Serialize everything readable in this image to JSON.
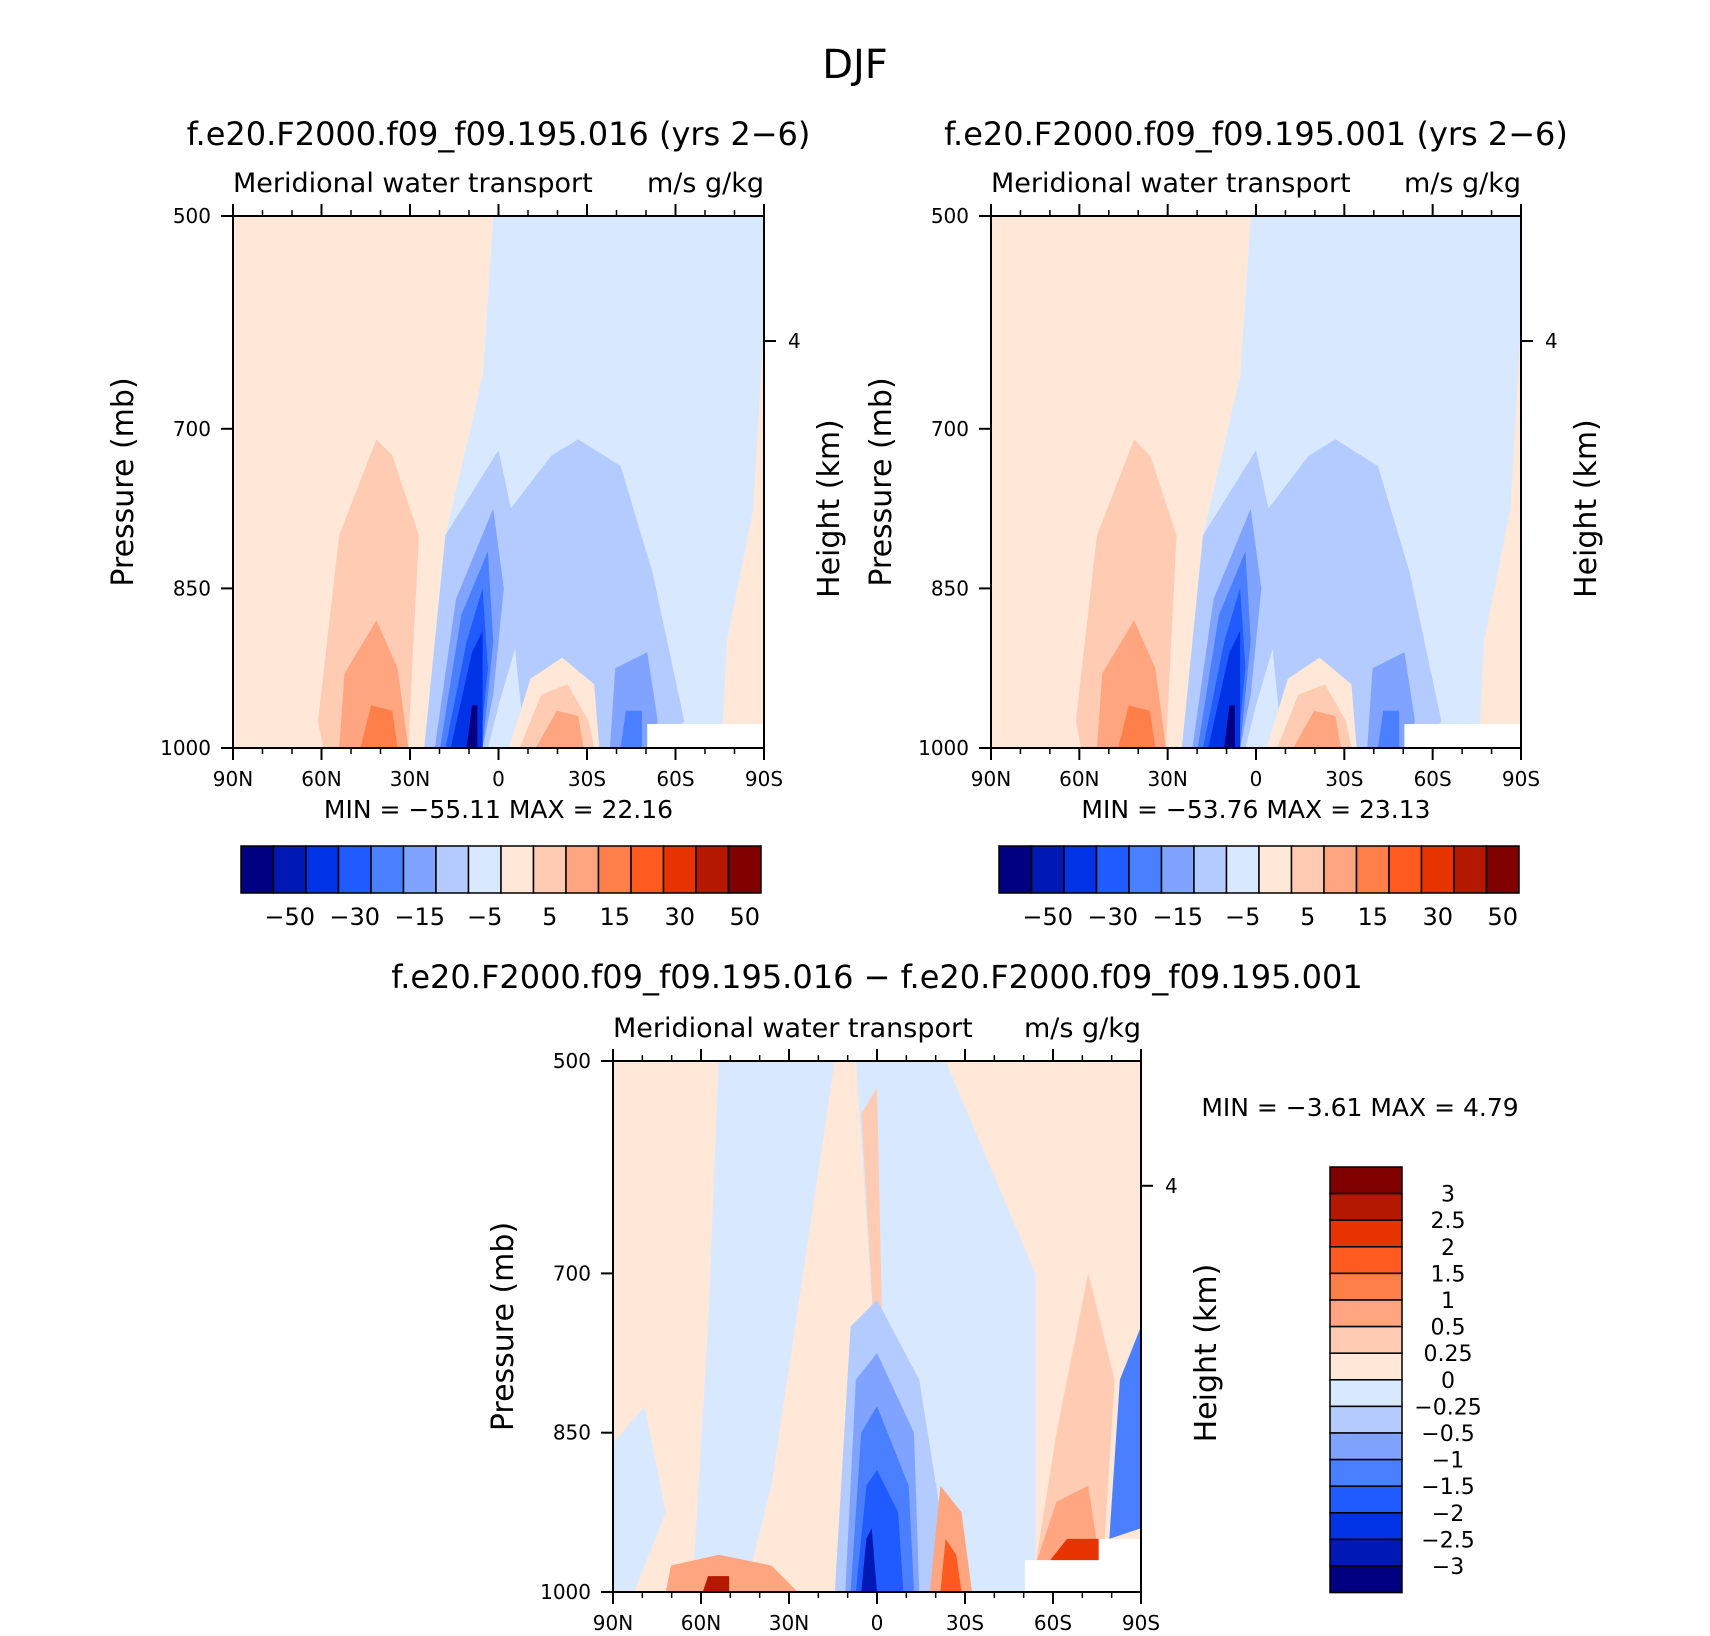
{
  "figure_title": "DJF",
  "colors": {
    "main_scale": [
      "#000080",
      "#0019b4",
      "#0033e6",
      "#1f5bff",
      "#4a7fff",
      "#7fa3ff",
      "#b3cbff",
      "#d8e9ff",
      "#ffe8d8",
      "#ffcbb3",
      "#ffa57f",
      "#ff7f4a",
      "#ff5a1f",
      "#e63300",
      "#b41900",
      "#800000"
    ],
    "diff_scale": [
      "#000080",
      "#0019b4",
      "#0033e6",
      "#1f5bff",
      "#4a7fff",
      "#7fa3ff",
      "#b3cbff",
      "#d8e9ff",
      "#ffe8d8",
      "#ffcbb3",
      "#ffa57f",
      "#ff7f4a",
      "#ff5a1f",
      "#e63300",
      "#b41900",
      "#800000"
    ]
  },
  "panels": [
    {
      "title": "f.e20.F2000.f09_f09.195.016 (yrs 2−6)",
      "left_label": "Meridional water transport",
      "right_label": "m/s g/kg",
      "min_max": "MIN = −55.11   MAX =   22.16"
    },
    {
      "title": "f.e20.F2000.f09_f09.195.001 (yrs 2−6)",
      "left_label": "Meridional water transport",
      "right_label": "m/s g/kg",
      "min_max": "MIN = −53.76   MAX =   23.13"
    },
    {
      "title": "f.e20.F2000.f09_f09.195.016 − f.e20.F2000.f09_f09.195.001",
      "left_label": "Meridional water transport",
      "right_label": "m/s g/kg",
      "min_max": "MIN =   −3.61   MAX =    4.79"
    }
  ],
  "axis": {
    "ylabel": "Pressure (mb)",
    "y2label": "Height (km)",
    "y2_ticks": [
      "4"
    ]
  },
  "colorbar_main_labels": [
    "−50",
    "−30",
    "−15",
    "−5",
    "5",
    "15",
    "30",
    "50"
  ],
  "colorbar_diff_labels": [
    "3",
    "2.5",
    "2",
    "1.5",
    "1",
    "0.5",
    "0.25",
    "0",
    "−0.25",
    "−0.5",
    "−1",
    "−1.5",
    "−2",
    "−2.5",
    "−3"
  ],
  "chart_data": [
    {
      "type": "heatmap",
      "title": "f.e20.F2000.f09_f09.195.016 (yrs 2−6)",
      "subtitle": "Meridional water transport",
      "units": "m/s g/kg",
      "xlabel": "",
      "ylabel": "Pressure (mb)",
      "y2label": "Height (km)",
      "x_ticks": [
        "90N",
        "60N",
        "30N",
        "0",
        "30S",
        "60S",
        "90S"
      ],
      "y_ticks": [
        500,
        700,
        850,
        1000
      ],
      "ylim": [
        1000,
        500
      ],
      "levels": [
        -50,
        -40,
        -30,
        -20,
        -15,
        -10,
        -5,
        0,
        5,
        10,
        15,
        20,
        30,
        40,
        50
      ],
      "min": -55.11,
      "max": 22.16
    },
    {
      "type": "heatmap",
      "title": "f.e20.F2000.f09_f09.195.001 (yrs 2−6)",
      "subtitle": "Meridional water transport",
      "units": "m/s g/kg",
      "xlabel": "",
      "ylabel": "Pressure (mb)",
      "y2label": "Height (km)",
      "x_ticks": [
        "90N",
        "60N",
        "30N",
        "0",
        "30S",
        "60S",
        "90S"
      ],
      "y_ticks": [
        500,
        700,
        850,
        1000
      ],
      "ylim": [
        1000,
        500
      ],
      "levels": [
        -50,
        -40,
        -30,
        -20,
        -15,
        -10,
        -5,
        0,
        5,
        10,
        15,
        20,
        30,
        40,
        50
      ],
      "min": -53.76,
      "max": 23.13
    },
    {
      "type": "heatmap",
      "title": "f.e20.F2000.f09_f09.195.016 − f.e20.F2000.f09_f09.195.001",
      "subtitle": "Meridional water transport",
      "units": "m/s g/kg",
      "xlabel": "",
      "ylabel": "Pressure (mb)",
      "y2label": "Height (km)",
      "x_ticks": [
        "90N",
        "60N",
        "30N",
        "0",
        "30S",
        "60S",
        "90S"
      ],
      "y_ticks": [
        500,
        700,
        850,
        1000
      ],
      "ylim": [
        1000,
        500
      ],
      "levels": [
        -3,
        -2.5,
        -2,
        -1.5,
        -1,
        -0.5,
        -0.25,
        0,
        0.25,
        0.5,
        1,
        1.5,
        2,
        2.5,
        3
      ],
      "min": -3.61,
      "max": 4.79
    }
  ]
}
